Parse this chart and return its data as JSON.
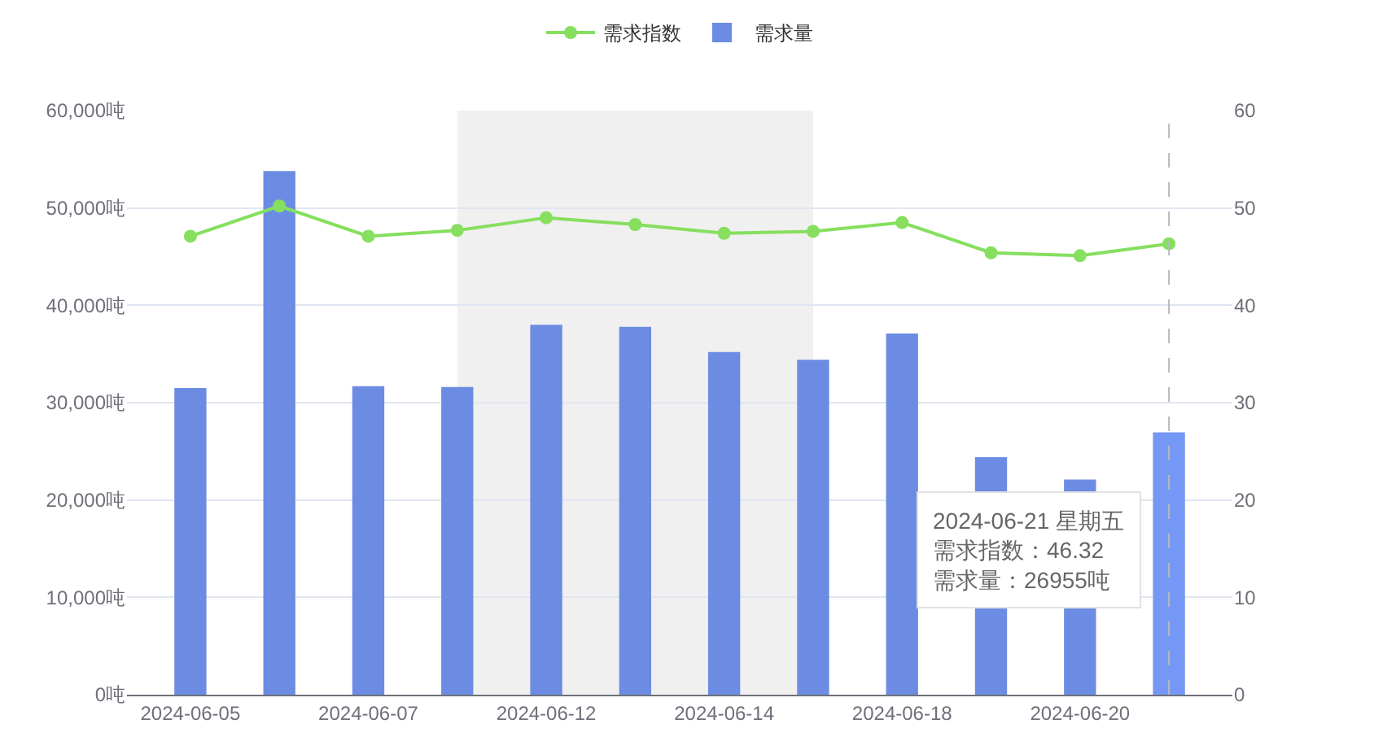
{
  "chart_data": {
    "type": "bar",
    "categories": [
      "2024-06-05",
      null,
      "2024-06-07",
      null,
      "2024-06-12",
      null,
      "2024-06-14",
      null,
      "2024-06-18",
      null,
      "2024-06-20",
      null
    ],
    "series": [
      {
        "name": "需求指数",
        "type": "line",
        "axis": "y2",
        "color": "#86df5e",
        "values": [
          47.1,
          50.2,
          47.1,
          47.7,
          49.0,
          48.3,
          47.4,
          47.6,
          48.5,
          45.4,
          45.1,
          46.32
        ]
      },
      {
        "name": "需求量",
        "colors": [
          "#6c8ce3",
          "#6c8ce3",
          "#6c8ce3",
          "#6c8ce3",
          "#6c8ce3",
          "#6c8ce3",
          "#6c8ce3",
          "#6c8ce3",
          "#6c8ce3",
          "#6c8ce3",
          "#6c8ce3",
          "#7597f5"
        ],
        "values": [
          31500,
          53800,
          31700,
          31600,
          38000,
          37800,
          35200,
          34400,
          37100,
          24400,
          22100,
          26955
        ]
      }
    ],
    "ylim": [
      0,
      60000
    ],
    "yticks": [
      {
        "value": 0,
        "label": "0吨"
      },
      {
        "value": 10000,
        "label": "10,000吨"
      },
      {
        "value": 20000,
        "label": "20,000吨"
      },
      {
        "value": 30000,
        "label": "30,000吨"
      },
      {
        "value": 40000,
        "label": "40,000吨"
      },
      {
        "value": 50000,
        "label": "50,000吨"
      },
      {
        "value": 60000,
        "label": "60,000吨"
      }
    ],
    "y2lim": [
      0,
      60
    ],
    "y2ticks": [
      0,
      10,
      20,
      30,
      40,
      50,
      60
    ],
    "annotations": [
      "2024-06-21 星期五",
      "需求指数：46.32",
      "需求量：26955吨"
    ],
    "grid": "y",
    "legend": "top",
    "marker": "circle",
    "line_style": "solid"
  }
}
